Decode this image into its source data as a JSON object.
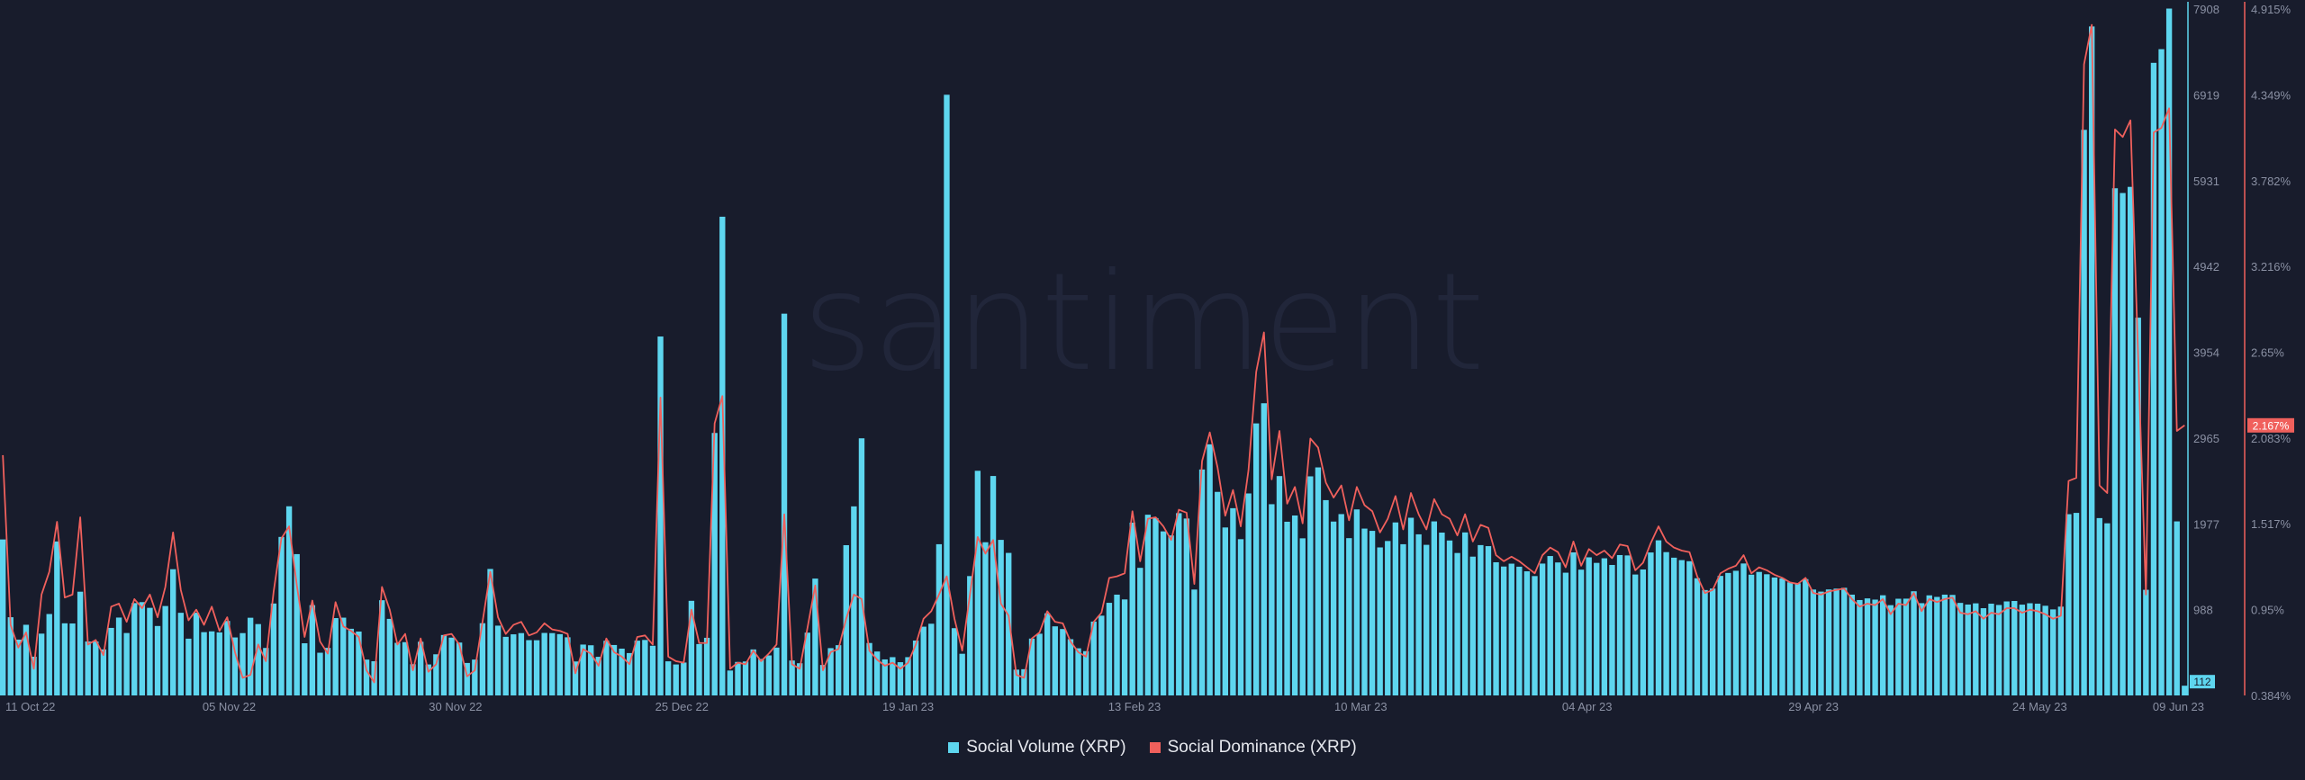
{
  "chart_data": {
    "type": "bar",
    "watermark": "santiment",
    "colors": {
      "background": "#181c2c",
      "volume": "#5ed6ef",
      "dominance": "#f0605c",
      "axis_text": "#8a90a3",
      "last_volume_badge": "#5ed6ef",
      "last_dominance_badge": "#f0605c"
    },
    "x_tick_labels": [
      "11 Oct 22",
      "05 Nov 22",
      "30 Nov 22",
      "25 Dec 22",
      "19 Jan 23",
      "13 Feb 23",
      "10 Mar 23",
      "04 Apr 23",
      "29 Apr 23",
      "24 May 23",
      "09 Jun 23"
    ],
    "x_tick_days": [
      0,
      25,
      50,
      75,
      100,
      125,
      150,
      175,
      200,
      225,
      241
    ],
    "y_left": {
      "min": 0,
      "max": 7908,
      "ticks": [
        988,
        1977,
        2965,
        3954,
        4942,
        5931,
        6919,
        7908
      ],
      "tick_labels": [
        "988",
        "1977",
        "2965",
        "3954",
        "4942",
        "5931",
        "6919",
        "7908"
      ]
    },
    "y_right": {
      "min": 0.384,
      "max": 4.915,
      "ticks": [
        0.384,
        0.95,
        1.517,
        2.083,
        2.65,
        3.216,
        3.782,
        4.349,
        4.915
      ],
      "tick_labels": [
        "0.384%",
        "0.95%",
        "1.517%",
        "2.083%",
        "2.65%",
        "3.216%",
        "3.782%",
        "4.349%",
        "4.915%"
      ]
    },
    "last_value_badges": {
      "volume": "112",
      "dominance": "2.167%"
    },
    "series": [
      {
        "name": "Social Volume (XRP)",
        "type": "bar",
        "values": [
          1797,
          901,
          643,
          814,
          446,
          712,
          938,
          1774,
          831,
          829,
          1195,
          621,
          621,
          530,
          778,
          897,
          719,
          1064,
          1075,
          1009,
          800,
          1030,
          1454,
          952,
          654,
          953,
          729,
          738,
          726,
          858,
          668,
          718,
          895,
          822,
          547,
          1059,
          1826,
          2179,
          1628,
          601,
          1040,
          492,
          548,
          891,
          896,
          768,
          736,
          413,
          394,
          1097,
          882,
          606,
          614,
          360,
          618,
          357,
          474,
          696,
          666,
          609,
          374,
          413,
          832,
          1457,
          804,
          675,
          704,
          718,
          637,
          636,
          720,
          718,
          706,
          670,
          391,
          586,
          578,
          445,
          630,
          581,
          539,
          488,
          631,
          639,
          572,
          4135,
          393,
          357,
          379,
          1090,
          592,
          664,
          3024,
          5515,
          287,
          386,
          391,
          530,
          420,
          461,
          551,
          4398,
          402,
          371,
          723,
          1346,
          351,
          545,
          579,
          1731,
          2178,
          2962,
          604,
          506,
          415,
          441,
          383,
          441,
          632,
          792,
          826,
          1742,
          6920,
          775,
          480,
          1375,
          2588,
          1765,
          2528,
          1792,
          1642,
          297,
          302,
          655,
          711,
          946,
          796,
          765,
          648,
          543,
          510,
          851,
          919,
          1067,
          1161,
          1106,
          1991,
          1470,
          2082,
          2043,
          1890,
          1843,
          2100,
          2038,
          1220,
          2603,
          2893,
          2345,
          1935,
          2157,
          1800,
          2327,
          3134,
          3366,
          2203,
          2527,
          2001,
          2073,
          1810,
          2524,
          2627,
          2250,
          2003,
          2089,
          1812,
          2143,
          1922,
          1896,
          1705,
          1779,
          1993,
          1742,
          2047,
          1856,
          1735,
          2005,
          1876,
          1785,
          1641,
          1878,
          1599,
          1732,
          1720,
          1534,
          1485,
          1518,
          1483,
          1430,
          1375,
          1519,
          1606,
          1532,
          1414,
          1648,
          1449,
          1591,
          1527,
          1580,
          1503,
          1617,
          1613,
          1393,
          1451,
          1647,
          1787,
          1651,
          1587,
          1559,
          1546,
          1350,
          1214,
          1231,
          1377,
          1411,
          1436,
          1520,
          1391,
          1423,
          1396,
          1359,
          1348,
          1303,
          1292,
          1340,
          1220,
          1196,
          1221,
          1231,
          1240,
          1161,
          1099,
          1118,
          1104,
          1154,
          1040,
          1114,
          1115,
          1200,
          1063,
          1153,
          1135,
          1161,
          1158,
          1066,
          1047,
          1061,
          1005,
          1057,
          1042,
          1083,
          1088,
          1046,
          1062,
          1057,
          1033,
          991,
          1023,
          2088,
          2103,
          6516,
          7707,
          2043,
          1983,
          5843,
          5788,
          5859,
          4352,
          1217,
          7288,
          7445,
          7913,
          2005,
          112
        ]
      },
      {
        "name": "Social Dominance (XRP)",
        "type": "line",
        "values": [
          1.97,
          0.85,
          0.7,
          0.8,
          0.56,
          1.05,
          1.2,
          1.53,
          1.03,
          1.05,
          1.56,
          0.72,
          0.75,
          0.65,
          0.97,
          0.99,
          0.87,
          1.02,
          0.96,
          1.05,
          0.9,
          1.1,
          1.46,
          1.08,
          0.88,
          0.95,
          0.85,
          0.97,
          0.81,
          0.9,
          0.67,
          0.5,
          0.52,
          0.72,
          0.61,
          1.07,
          1.42,
          1.5,
          1.11,
          0.77,
          1.01,
          0.74,
          0.66,
          1.0,
          0.84,
          0.81,
          0.77,
          0.55,
          0.47,
          1.1,
          0.95,
          0.72,
          0.79,
          0.55,
          0.76,
          0.54,
          0.59,
          0.78,
          0.79,
          0.72,
          0.51,
          0.55,
          0.87,
          1.2,
          0.9,
          0.79,
          0.85,
          0.87,
          0.78,
          0.8,
          0.86,
          0.82,
          0.81,
          0.79,
          0.53,
          0.69,
          0.66,
          0.58,
          0.76,
          0.67,
          0.64,
          0.59,
          0.77,
          0.78,
          0.72,
          2.35,
          0.64,
          0.61,
          0.6,
          0.95,
          0.73,
          0.73,
          2.18,
          2.36,
          0.56,
          0.6,
          0.59,
          0.68,
          0.61,
          0.66,
          0.72,
          1.58,
          0.59,
          0.56,
          0.83,
          1.11,
          0.55,
          0.67,
          0.69,
          0.89,
          1.05,
          1.02,
          0.68,
          0.62,
          0.58,
          0.6,
          0.56,
          0.6,
          0.72,
          0.89,
          0.94,
          1.05,
          1.17,
          0.89,
          0.68,
          1.05,
          1.43,
          1.32,
          1.41,
          0.99,
          0.91,
          0.52,
          0.5,
          0.76,
          0.8,
          0.94,
          0.87,
          0.86,
          0.74,
          0.67,
          0.64,
          0.87,
          0.93,
          1.16,
          1.17,
          1.19,
          1.6,
          1.27,
          1.55,
          1.56,
          1.5,
          1.41,
          1.61,
          1.59,
          1.12,
          1.93,
          2.12,
          1.89,
          1.57,
          1.74,
          1.5,
          1.87,
          2.52,
          2.78,
          1.81,
          2.13,
          1.65,
          1.76,
          1.52,
          2.08,
          2.02,
          1.79,
          1.69,
          1.77,
          1.54,
          1.76,
          1.64,
          1.6,
          1.46,
          1.55,
          1.7,
          1.48,
          1.72,
          1.58,
          1.48,
          1.68,
          1.58,
          1.55,
          1.44,
          1.58,
          1.4,
          1.51,
          1.49,
          1.31,
          1.27,
          1.3,
          1.27,
          1.23,
          1.19,
          1.31,
          1.36,
          1.33,
          1.23,
          1.4,
          1.24,
          1.35,
          1.31,
          1.34,
          1.29,
          1.38,
          1.37,
          1.21,
          1.26,
          1.39,
          1.5,
          1.4,
          1.36,
          1.34,
          1.33,
          1.17,
          1.06,
          1.08,
          1.19,
          1.22,
          1.24,
          1.31,
          1.19,
          1.23,
          1.21,
          1.18,
          1.16,
          1.13,
          1.12,
          1.16,
          1.06,
          1.05,
          1.07,
          1.08,
          1.09,
          1.02,
          0.97,
          0.99,
          0.98,
          1.02,
          0.92,
          0.99,
          0.98,
          1.06,
          0.94,
          1.02,
          1.0,
          1.02,
          1.03,
          0.93,
          0.92,
          0.94,
          0.89,
          0.93,
          0.92,
          0.96,
          0.96,
          0.93,
          0.95,
          0.94,
          0.92,
          0.89,
          0.91,
          1.8,
          1.82,
          4.55,
          4.81,
          1.77,
          1.72,
          4.12,
          4.07,
          4.18,
          2.61,
          1.05,
          4.1,
          4.13,
          4.26,
          2.13,
          2.167
        ]
      }
    ],
    "legend": [
      "Social Volume (XRP)",
      "Social Dominance (XRP)"
    ]
  }
}
